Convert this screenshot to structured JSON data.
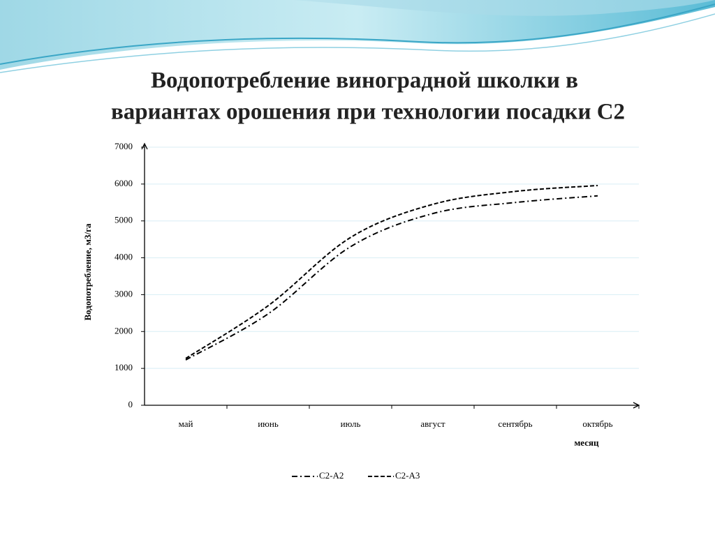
{
  "chart_data": {
    "type": "line",
    "title": [
      "Водопотребление виноградной школки в",
      "вариантах орошения при технологии посадки С2"
    ],
    "y_label": "Водопотребление, м3/га",
    "x_label": "месяц",
    "categories": [
      "май",
      "июнь",
      "июль",
      "август",
      "сентябрь",
      "октябрь"
    ],
    "series": [
      {
        "name": "С2-А2",
        "color": "#000000",
        "style": "dash-dot",
        "values": [
          1230,
          2480,
          4300,
          5200,
          5500,
          5680
        ]
      },
      {
        "name": "С2-А3",
        "color": "#000000",
        "style": "dashed",
        "values": [
          1270,
          2700,
          4550,
          5450,
          5800,
          5960
        ]
      }
    ],
    "ylim": [
      0,
      7000
    ],
    "yticks": [
      0,
      1000,
      2000,
      3000,
      4000,
      5000,
      6000,
      7000
    ],
    "grid": true,
    "legend": "bottom"
  }
}
